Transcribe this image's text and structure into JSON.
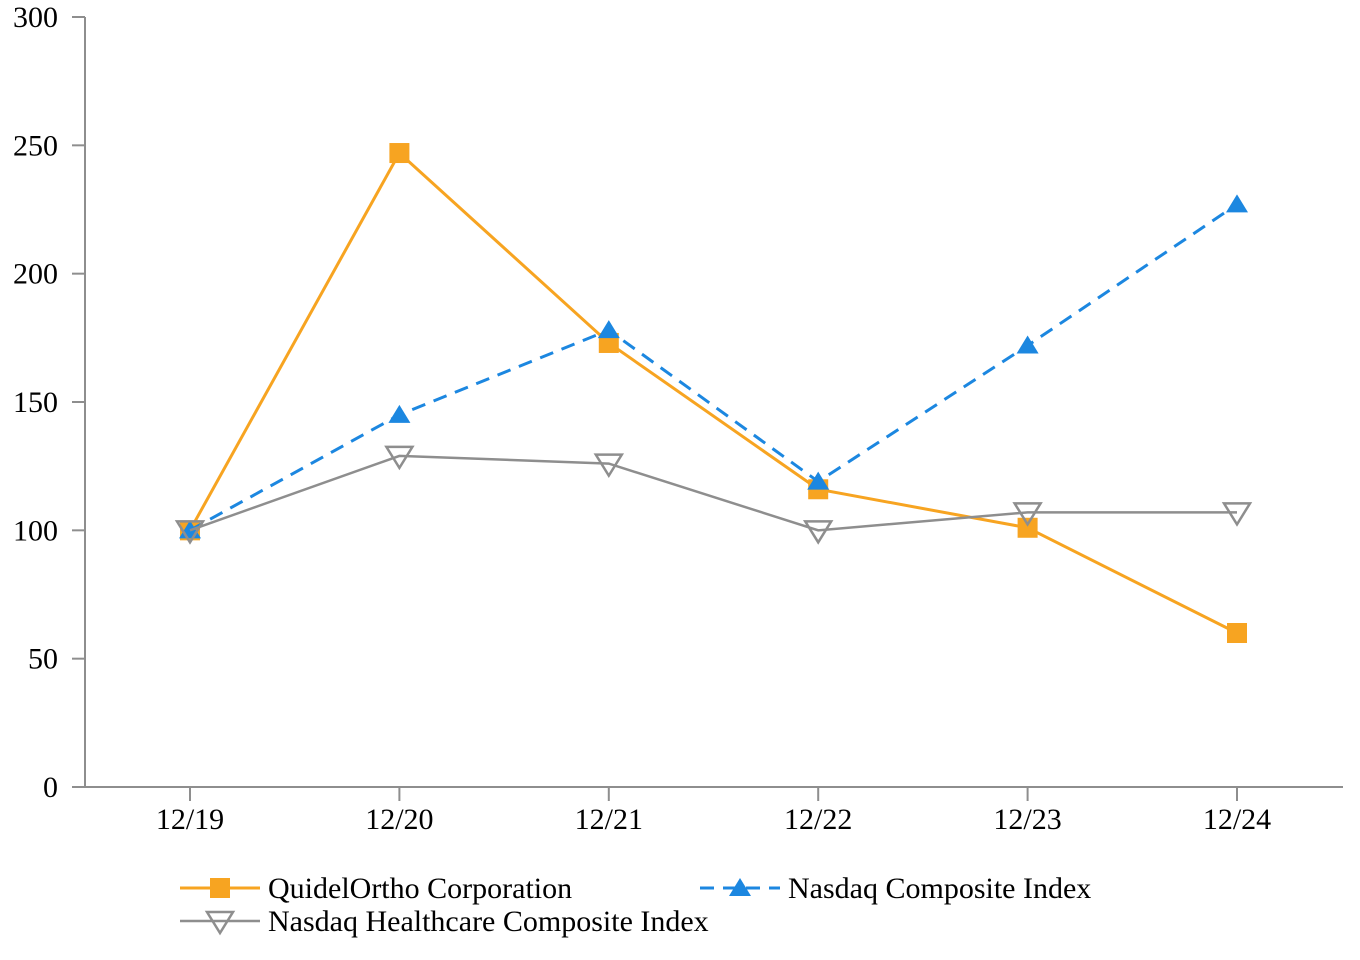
{
  "chart_data": {
    "type": "line",
    "title": "",
    "xlabel": "",
    "ylabel": "",
    "categories": [
      "12/19",
      "12/20",
      "12/21",
      "12/22",
      "12/23",
      "12/24"
    ],
    "series": [
      {
        "name": "QuidelOrtho Corporation",
        "values": [
          100,
          247,
          173,
          116,
          101,
          60
        ],
        "color": "#F7A421",
        "line_style": "solid",
        "marker": "filled-square"
      },
      {
        "name": "Nasdaq Composite Index",
        "values": [
          100,
          145,
          178,
          119,
          172,
          227
        ],
        "color": "#1C87E0",
        "line_style": "dashed",
        "marker": "filled-triangle-up"
      },
      {
        "name": "Nasdaq Healthcare Composite Index",
        "values": [
          100,
          129,
          126,
          100,
          107,
          107
        ],
        "color": "#8E8E8E",
        "line_style": "solid",
        "marker": "open-triangle-down"
      }
    ],
    "y_ticks": [
      "300",
      "250",
      "200",
      "150",
      "100",
      "50",
      "0"
    ],
    "y_tick_values": [
      300,
      250,
      200,
      150,
      100,
      50,
      0
    ],
    "ylim": [
      0,
      300
    ],
    "grid": false,
    "legend_position": "bottom",
    "axis_color": "#8E8E8E",
    "text_color": "#000000",
    "background_color": "#FFFFFF"
  }
}
